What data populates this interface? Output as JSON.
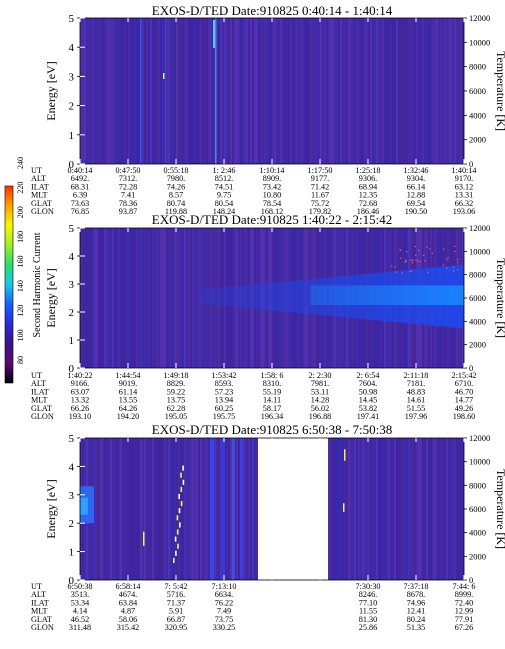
{
  "colorbar": {
    "label": "Second Harmonic Current",
    "ticks": [
      "80",
      "100",
      "120",
      "140",
      "160",
      "180",
      "200",
      "220",
      "240"
    ],
    "colors": [
      "#000000",
      "#5a0a72",
      "#3a1488",
      "#2a2ad8",
      "#1860ff",
      "#19c8e8",
      "#22e070",
      "#9cf020",
      "#f8f800",
      "#ffa000",
      "#ff3000"
    ]
  },
  "chart_data": [
    {
      "type": "heatmap",
      "title": "EXOS-D/TED   Date:910825   0:40:14 - 1:40:14",
      "ylabel": "Energy [eV]",
      "ylabel_right": "Temperature [K]",
      "ylim": [
        0,
        5
      ],
      "yticks": [
        "0",
        "1",
        "2",
        "3",
        "4",
        "5"
      ],
      "ylim_right": [
        0,
        12000
      ],
      "yticks_right": [
        "0",
        "2000",
        "4000",
        "6000",
        "8000",
        "10000",
        "12000"
      ],
      "row_labels": [
        "UT",
        "ALT",
        "ILAT",
        "MLT",
        "GLAT",
        "GLON"
      ],
      "columns": [
        [
          "0:40:14",
          "6492.",
          "68.31",
          "6.39",
          "73.63",
          "76.85"
        ],
        [
          "0:47:50",
          "7312.",
          "72.28",
          "7.41",
          "78.36",
          "93.87"
        ],
        [
          "0:55:18",
          "7980.",
          "74.26",
          "8.57",
          "80.74",
          "119.88"
        ],
        [
          "1: 2:46",
          "8512.",
          "74.51",
          "9.75",
          "80.54",
          "148.24"
        ],
        [
          "1:10:14",
          "8909.",
          "73.42",
          "10.80",
          "78.54",
          "168.12"
        ],
        [
          "1:17:50",
          "9177.",
          "71.42",
          "11.67",
          "75.72",
          "179.82"
        ],
        [
          "1:25:18",
          "9306.",
          "68.94",
          "12.35",
          "72.68",
          "186.46"
        ],
        [
          "1:32:46",
          "9304.",
          "66.14",
          "12.88",
          "69.54",
          "190.50"
        ],
        [
          "1:40:14",
          "9170.",
          "63.12",
          "13.31",
          "66.32",
          "193.06"
        ]
      ],
      "gaps": []
    },
    {
      "type": "heatmap",
      "title": "EXOS-D/TED   Date:910825   1:40:22 - 2:15:42",
      "ylabel": "Energy [eV]",
      "ylabel_right": "Temperature [K]",
      "ylim": [
        0,
        5
      ],
      "yticks": [
        "0",
        "1",
        "2",
        "3",
        "4",
        "5"
      ],
      "ylim_right": [
        0,
        12000
      ],
      "yticks_right": [
        "0",
        "2000",
        "4000",
        "6000",
        "8000",
        "10000",
        "12000"
      ],
      "row_labels": [
        "UT",
        "ALT",
        "ILAT",
        "MLT",
        "GLAT",
        "GLON"
      ],
      "columns": [
        [
          "1:40:22",
          "9166.",
          "63.07",
          "13.32",
          "66.26",
          "193.10"
        ],
        [
          "1:44:54",
          "9019.",
          "61.14",
          "13.55",
          "64.26",
          "194.20"
        ],
        [
          "1:49:18",
          "8829.",
          "59.22",
          "13.75",
          "62.28",
          "195.05"
        ],
        [
          "1:53:42",
          "8593.",
          "57.23",
          "13.94",
          "60.25",
          "195.75"
        ],
        [
          "1:58: 6",
          "8310.",
          "55.19",
          "14.11",
          "58.17",
          "196.34"
        ],
        [
          "2: 2:30",
          "7981.",
          "53.11",
          "14.28",
          "56.02",
          "196.88"
        ],
        [
          "2: 6:54",
          "7604.",
          "50.98",
          "14.45",
          "53.82",
          "197.41"
        ],
        [
          "2:11:18",
          "7181.",
          "48.83",
          "14.61",
          "51.55",
          "197.96"
        ],
        [
          "2:15:42",
          "6710.",
          "46.70",
          "14.77",
          "49.26",
          "198.60"
        ]
      ],
      "gaps": []
    },
    {
      "type": "heatmap",
      "title": "EXOS-D/TED   Date:910825   6:50:38 - 7:50:38",
      "ylabel": "Energy [eV]",
      "ylabel_right": "Temperature [K]",
      "ylim": [
        0,
        5
      ],
      "yticks": [
        "0",
        "1",
        "2",
        "3",
        "4",
        "5"
      ],
      "ylim_right": [
        0,
        12000
      ],
      "yticks_right": [
        "0",
        "2000",
        "4000",
        "6000",
        "8000",
        "10000",
        "12000"
      ],
      "row_labels": [
        "UT",
        "ALT",
        "ILAT",
        "MLT",
        "GLAT",
        "GLON"
      ],
      "columns": [
        [
          "6:50:38",
          "3513.",
          "53.34",
          "4.14",
          "46.52",
          "311.48"
        ],
        [
          "6:58:14",
          "4674.",
          "63.84",
          "4.87",
          "58.06",
          "315.42"
        ],
        [
          "7: 5:42",
          "5716.",
          "71.37",
          "5.91",
          "66.87",
          "320.95"
        ],
        [
          "7:13:10",
          "6634.",
          "76.22",
          "7.49",
          "73.75",
          "330.25"
        ],
        [
          "",
          "",
          "",
          "",
          "",
          ""
        ],
        [
          "",
          "",
          "",
          "",
          "",
          ""
        ],
        [
          "7:30:30",
          "8246.",
          "77.10",
          "11.55",
          "81.30",
          "25.86"
        ],
        [
          "7:37:18",
          "8678.",
          "74.96",
          "12.41",
          "80.24",
          "51.35"
        ],
        [
          "7:44: 6",
          "8999.",
          "72.40",
          "12.99",
          "77.91",
          "67.26"
        ]
      ],
      "gaps": [
        [
          7.3,
          7.5
        ]
      ]
    }
  ]
}
